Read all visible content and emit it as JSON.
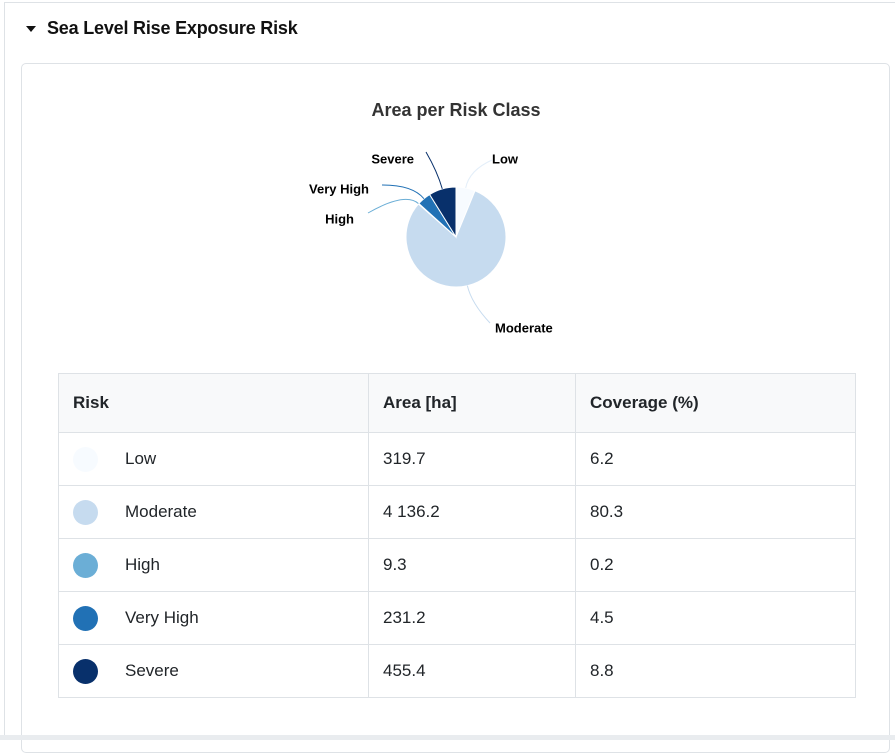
{
  "section": {
    "title": "Sea Level Rise Exposure Risk"
  },
  "chart_data": {
    "type": "pie",
    "title": "Area per Risk Class",
    "slices": [
      {
        "label": "Low",
        "value": 319.7,
        "color": "#f7fbff"
      },
      {
        "label": "Moderate",
        "value": 4136.2,
        "color": "#c6dbef"
      },
      {
        "label": "High",
        "value": 9.3,
        "color": "#6baed6"
      },
      {
        "label": "Very High",
        "value": 231.2,
        "color": "#2171b5"
      },
      {
        "label": "Severe",
        "value": 455.4,
        "color": "#08306b"
      }
    ]
  },
  "table": {
    "headers": {
      "risk": "Risk",
      "area": "Area [ha]",
      "coverage": "Coverage (%)"
    },
    "rows": [
      {
        "risk": "Low",
        "area": "319.7",
        "coverage": "6.2",
        "color": "#f7fbff"
      },
      {
        "risk": "Moderate",
        "area": "4 136.2",
        "coverage": "80.3",
        "color": "#c6dbef"
      },
      {
        "risk": "High",
        "area": "9.3",
        "coverage": "0.2",
        "color": "#6baed6"
      },
      {
        "risk": "Very High",
        "area": "231.2",
        "coverage": "4.5",
        "color": "#2171b5"
      },
      {
        "risk": "Severe",
        "area": "455.4",
        "coverage": "8.8",
        "color": "#08306b"
      }
    ]
  }
}
